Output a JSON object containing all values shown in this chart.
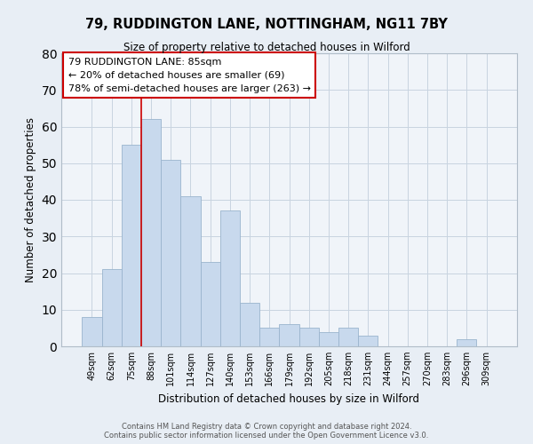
{
  "title": "79, RUDDINGTON LANE, NOTTINGHAM, NG11 7BY",
  "subtitle": "Size of property relative to detached houses in Wilford",
  "xlabel": "Distribution of detached houses by size in Wilford",
  "ylabel": "Number of detached properties",
  "bar_color": "#c8d9ed",
  "bar_edge_color": "#9ab4ce",
  "categories": [
    "49sqm",
    "62sqm",
    "75sqm",
    "88sqm",
    "101sqm",
    "114sqm",
    "127sqm",
    "140sqm",
    "153sqm",
    "166sqm",
    "179sqm",
    "192sqm",
    "205sqm",
    "218sqm",
    "231sqm",
    "244sqm",
    "257sqm",
    "270sqm",
    "283sqm",
    "296sqm",
    "309sqm"
  ],
  "values": [
    8,
    21,
    55,
    62,
    51,
    41,
    23,
    37,
    12,
    5,
    6,
    5,
    4,
    5,
    3,
    0,
    0,
    0,
    0,
    2,
    0
  ],
  "ylim": [
    0,
    80
  ],
  "yticks": [
    0,
    10,
    20,
    30,
    40,
    50,
    60,
    70,
    80
  ],
  "vline_index": 3,
  "vline_color": "#cc0000",
  "annotation_title": "79 RUDDINGTON LANE: 85sqm",
  "annotation_line1": "← 20% of detached houses are smaller (69)",
  "annotation_line2": "78% of semi-detached houses are larger (263) →",
  "footer1": "Contains HM Land Registry data © Crown copyright and database right 2024.",
  "footer2": "Contains public sector information licensed under the Open Government Licence v3.0.",
  "background_color": "#e8eef5",
  "plot_bg_color": "#f0f4f9",
  "grid_color": "#c8d4e0"
}
